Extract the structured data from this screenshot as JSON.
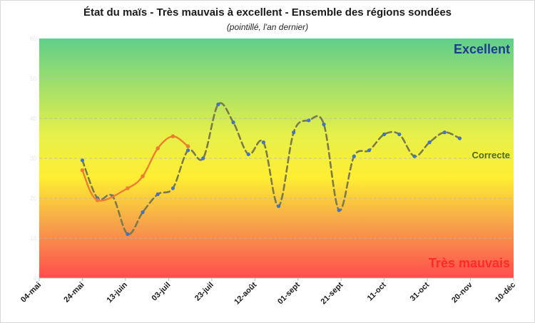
{
  "chart_data": {
    "type": "line",
    "title": "État du maïs - Très mauvais à excellent - Ensemble des régions sondées",
    "subtitle": "(pointillé, l'an dernier)",
    "band_labels": {
      "top": "Excellent",
      "middle": "Correcte",
      "bottom": "Très mauvais"
    },
    "colors": {
      "top": "#1f3a93",
      "middle": "#4d6b1a",
      "bottom": "#ff2a2a",
      "current": "#ed7d31",
      "last_year_line": "#7a7a4a",
      "last_year_marker": "#4472c4"
    },
    "xlim": [
      "2025-05-04",
      "2025-12-10"
    ],
    "x_ticks": [
      "04-mai",
      "24-mai",
      "13-juin",
      "03-juil",
      "23-juil",
      "12-août",
      "01-sept",
      "21-sept",
      "11-oct",
      "31-oct",
      "20-nov",
      "10-déc"
    ],
    "ylim": [
      0,
      60
    ],
    "y_ticks": [
      "0",
      "10",
      "20",
      "30",
      "40",
      "50",
      "60"
    ],
    "grid": true,
    "series": [
      {
        "line": "dashed",
        "x": [
          "2025-05-24",
          "2025-05-31",
          "2025-06-07",
          "2025-06-14",
          "2025-06-21",
          "2025-06-28",
          "2025-07-05",
          "2025-07-12",
          "2025-07-19",
          "2025-07-26",
          "2025-08-02",
          "2025-08-09",
          "2025-08-16",
          "2025-08-23",
          "2025-08-30",
          "2025-09-06",
          "2025-09-13",
          "2025-09-20",
          "2025-09-27",
          "2025-10-04",
          "2025-10-11",
          "2025-10-18",
          "2025-10-25",
          "2025-11-01",
          "2025-11-08",
          "2025-11-15"
        ],
        "values": [
          29.5,
          20,
          20.5,
          11,
          16.5,
          21,
          22.5,
          32,
          30,
          43.5,
          39,
          31,
          34,
          18,
          36.5,
          39.5,
          38.5,
          17,
          30.5,
          32,
          36,
          36,
          30.5,
          34,
          36.5,
          35
        ]
      },
      {
        "line": "solid",
        "x": [
          "2025-05-24",
          "2025-05-31",
          "2025-06-14",
          "2025-06-21",
          "2025-06-28",
          "2025-07-05",
          "2025-07-12"
        ],
        "values": [
          27,
          19.5,
          22.5,
          25.5,
          32.5,
          35.5,
          33
        ]
      }
    ]
  }
}
